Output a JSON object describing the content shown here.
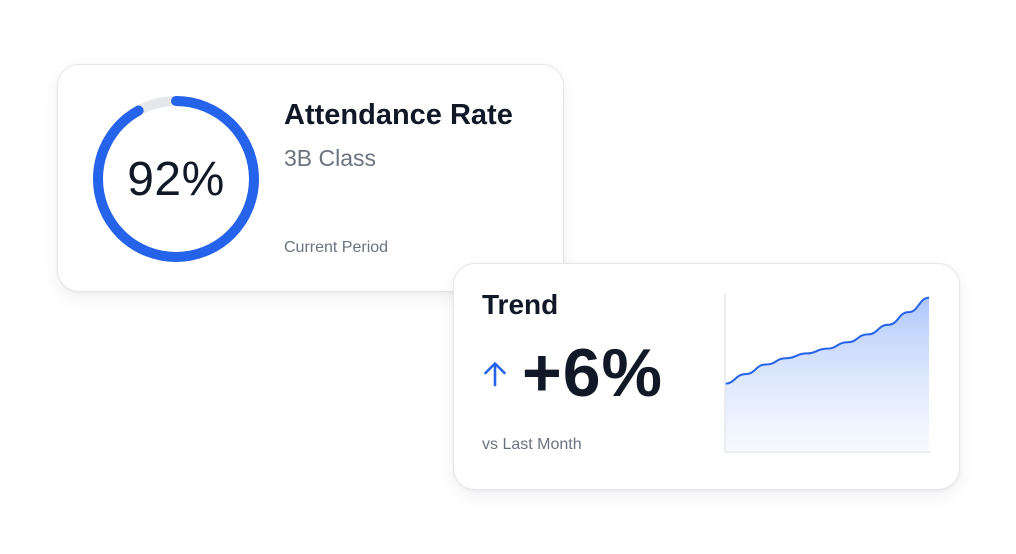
{
  "attendance": {
    "rate_label": "92%",
    "rate_fraction": 0.92,
    "title": "Attendance Rate",
    "class_name": "3B Class",
    "period": "Current Period",
    "ring_color": "#2563eb",
    "track_color": "#e5e7eb"
  },
  "trend": {
    "title": "Trend",
    "direction_icon": "arrow-up-icon",
    "value": "+6%",
    "comparison": "vs Last Month",
    "accent_color": "#2563eb",
    "sparkline": [
      0.43,
      0.49,
      0.55,
      0.59,
      0.62,
      0.65,
      0.69,
      0.74,
      0.8,
      0.88,
      0.97
    ]
  }
}
